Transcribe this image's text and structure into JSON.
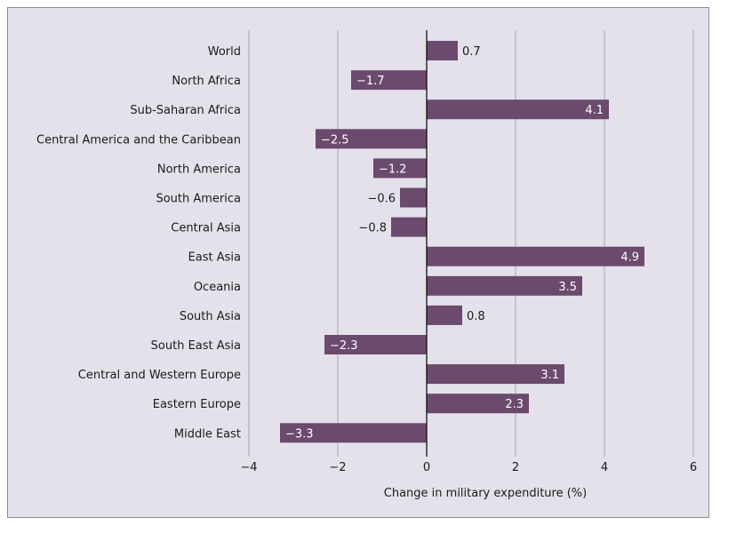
{
  "chart_data": {
    "type": "bar",
    "orientation": "horizontal",
    "title": "",
    "xlabel": "Change in military expenditure (%)",
    "ylabel": "",
    "xlim": [
      -4,
      6
    ],
    "xticks": [
      -4,
      -2,
      0,
      2,
      4,
      6
    ],
    "xtick_labels": [
      "−4",
      "−2",
      "0",
      "2",
      "4",
      "6"
    ],
    "grid": true,
    "legend": "none",
    "categories": [
      "World",
      "North Africa",
      "Sub-Saharan Africa",
      "Central America and the Caribbean",
      "North America",
      "South America",
      "Central Asia",
      "East Asia",
      "Oceania",
      "South Asia",
      "South East Asia",
      "Central and Western Europe",
      "Eastern Europe",
      "Middle East"
    ],
    "values": [
      0.7,
      -1.7,
      4.1,
      -2.5,
      -1.2,
      -0.6,
      -0.8,
      4.9,
      3.5,
      0.8,
      -2.3,
      3.1,
      2.3,
      -3.3
    ],
    "value_labels": [
      "0.7",
      "−1.7",
      "4.1",
      "−2.5",
      "−1.2",
      "−0.6",
      "−0.8",
      "4.9",
      "3.5",
      "0.8",
      "−2.3",
      "3.1",
      "2.3",
      "−3.3"
    ],
    "colors": {
      "bar": "#6b4a6e",
      "grid": "#b5b2b9",
      "axis": "#111111",
      "panel": "#e4e1eb",
      "label_inside": "#ffffff",
      "label_outside": "#1a1a1a"
    }
  }
}
